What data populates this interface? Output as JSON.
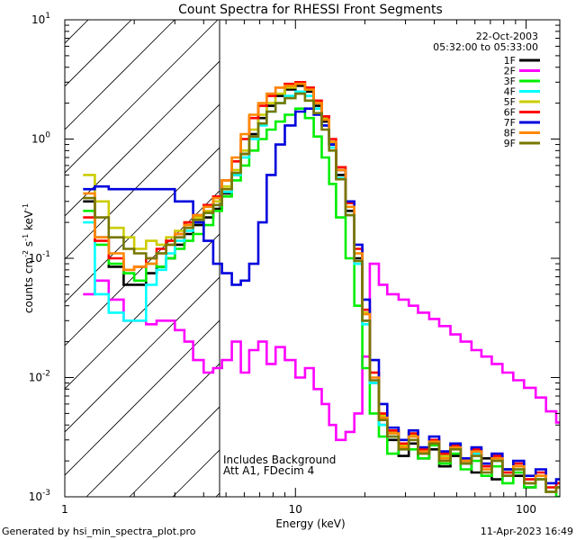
{
  "chart_data": {
    "type": "line",
    "title": "Count Spectra for RHESSI Front Segments",
    "xlabel": "Energy (keV)",
    "ylabel": "counts cm",
    "ylabel_sup1": "-2",
    "ylabel_mid": " s",
    "ylabel_sup2": "-1",
    "ylabel_end": " keV",
    "ylabel_sup3": "-1",
    "x_scale": "log",
    "y_scale": "log",
    "xlim": [
      1,
      140
    ],
    "ylim": [
      0.001,
      10
    ],
    "x_ticks": [
      {
        "value": 1,
        "label": "1"
      },
      {
        "value": 10,
        "label": "10"
      },
      {
        "value": 100,
        "label": "100"
      }
    ],
    "y_ticks": [
      {
        "value": 0.001,
        "base": "10",
        "exp": "-3"
      },
      {
        "value": 0.01,
        "base": "10",
        "exp": "-2"
      },
      {
        "value": 0.1,
        "base": "10",
        "exp": "-1"
      },
      {
        "value": 1,
        "base": "10",
        "exp": "0"
      },
      {
        "value": 10,
        "base": "10",
        "exp": "1"
      }
    ],
    "hatched_region_x": [
      1,
      6
    ],
    "legend": {
      "position": "top-right",
      "date": "22-Oct-2003",
      "time_range": "05:32:00 to 05:33:00"
    },
    "annotation_lines": [
      "Includes Background",
      "Att A1, FDecim  4"
    ],
    "footer_left": "Generated by hsi_min_spectra_plot.pro",
    "footer_right": "11-Apr-2023 16:49",
    "energy_bins": [
      1.2,
      1.35,
      1.55,
      1.8,
      2.0,
      2.25,
      2.5,
      2.75,
      3.0,
      3.3,
      3.6,
      4.0,
      4.4,
      4.8,
      5.3,
      5.8,
      6.3,
      6.9,
      7.5,
      8.2,
      9.0,
      10.0,
      11.0,
      12.0,
      13.0,
      14.0,
      15.0,
      16.5,
      18.0,
      19.5,
      21.0,
      23.0,
      25.0,
      28.0,
      31.0,
      34.0,
      38.0,
      42.0,
      47.0,
      52.0,
      58.0,
      64.0,
      71.0,
      79.0,
      88.0,
      98.0,
      110.0,
      122.0,
      135.0
    ],
    "series": [
      {
        "name": "1F",
        "color": "#000000",
        "values": [
          0.3,
          0.15,
          0.085,
          0.06,
          0.06,
          0.075,
          0.085,
          0.1,
          0.13,
          0.16,
          0.19,
          0.22,
          0.26,
          0.35,
          0.5,
          0.75,
          1.1,
          1.5,
          1.9,
          2.3,
          2.6,
          2.8,
          2.5,
          1.9,
          1.4,
          0.9,
          0.5,
          0.25,
          0.1,
          0.03,
          0.009,
          0.004,
          0.003,
          0.0022,
          0.0028,
          0.0021,
          0.0025,
          0.0018,
          0.0022,
          0.0019,
          0.0016,
          0.0021,
          0.0014,
          0.0017,
          0.0015,
          0.0012,
          0.0014,
          0.0011,
          0.0012
        ]
      },
      {
        "name": "2F",
        "color": "#ff00ff",
        "values": [
          0.05,
          0.065,
          0.045,
          0.03,
          0.03,
          0.028,
          0.03,
          0.03,
          0.025,
          0.02,
          0.014,
          0.011,
          0.012,
          0.014,
          0.02,
          0.011,
          0.017,
          0.02,
          0.013,
          0.018,
          0.014,
          0.01,
          0.012,
          0.008,
          0.006,
          0.004,
          0.003,
          0.0035,
          0.005,
          0.015,
          0.09,
          0.06,
          0.05,
          0.045,
          0.04,
          0.035,
          0.031,
          0.027,
          0.023,
          0.02,
          0.017,
          0.015,
          0.013,
          0.011,
          0.0095,
          0.0082,
          0.0068,
          0.0052,
          0.0042
        ]
      },
      {
        "name": "3F",
        "color": "#00ee00",
        "values": [
          0.25,
          0.13,
          0.09,
          0.075,
          0.065,
          0.09,
          0.085,
          0.1,
          0.12,
          0.14,
          0.16,
          0.19,
          0.25,
          0.33,
          0.45,
          0.6,
          0.8,
          1.0,
          1.2,
          1.4,
          1.6,
          1.8,
          1.5,
          1.05,
          0.7,
          0.42,
          0.22,
          0.1,
          0.04,
          0.012,
          0.005,
          0.0032,
          0.0023,
          0.0028,
          0.0025,
          0.0021,
          0.0027,
          0.0019,
          0.0023,
          0.0017,
          0.002,
          0.0015,
          0.0018,
          0.0013,
          0.0016,
          0.0012,
          0.0014,
          0.0011,
          0.001
        ]
      },
      {
        "name": "4F",
        "color": "#00ffff",
        "values": [
          0.2,
          0.05,
          0.035,
          0.03,
          0.03,
          0.06,
          0.08,
          0.11,
          0.14,
          0.17,
          0.2,
          0.24,
          0.28,
          0.36,
          0.5,
          0.7,
          1.0,
          1.3,
          1.7,
          2.0,
          2.3,
          2.5,
          2.3,
          1.8,
          1.3,
          0.85,
          0.47,
          0.23,
          0.09,
          0.028,
          0.009,
          0.004,
          0.0032,
          0.0026,
          0.0034,
          0.0024,
          0.003,
          0.0022,
          0.0027,
          0.0019,
          0.0023,
          0.0018,
          0.002,
          0.0015,
          0.0017,
          0.0013,
          0.0014,
          0.0011,
          0.0012
        ]
      },
      {
        "name": "5F",
        "color": "#cccc00",
        "values": [
          0.5,
          0.3,
          0.18,
          0.15,
          0.12,
          0.14,
          0.13,
          0.15,
          0.17,
          0.2,
          0.22,
          0.25,
          0.3,
          0.4,
          0.55,
          0.8,
          1.2,
          1.6,
          2.0,
          2.4,
          2.7,
          2.9,
          2.6,
          2.0,
          1.5,
          0.95,
          0.55,
          0.27,
          0.11,
          0.035,
          0.011,
          0.0048,
          0.0035,
          0.0027,
          0.0033,
          0.0024,
          0.003,
          0.0022,
          0.0026,
          0.002,
          0.0024,
          0.0018,
          0.0021,
          0.0016,
          0.0018,
          0.0014,
          0.0015,
          0.0012,
          0.0013
        ]
      },
      {
        "name": "6F",
        "color": "#ff0000",
        "values": [
          0.22,
          0.14,
          0.1,
          0.08,
          0.085,
          0.1,
          0.12,
          0.14,
          0.16,
          0.2,
          0.23,
          0.28,
          0.33,
          0.45,
          0.65,
          1.0,
          1.5,
          1.9,
          2.3,
          2.7,
          2.9,
          3.0,
          2.7,
          2.1,
          1.55,
          1.0,
          0.58,
          0.29,
          0.12,
          0.037,
          0.011,
          0.005,
          0.0036,
          0.0028,
          0.0034,
          0.0025,
          0.003,
          0.0023,
          0.0027,
          0.0021,
          0.0025,
          0.0018,
          0.0022,
          0.0016,
          0.0019,
          0.0014,
          0.0016,
          0.0012,
          0.0013
        ]
      },
      {
        "name": "7F",
        "color": "#0000dd",
        "values": [
          0.38,
          0.4,
          0.38,
          0.38,
          0.38,
          0.38,
          0.38,
          0.38,
          0.3,
          0.3,
          0.2,
          0.14,
          0.09,
          0.075,
          0.06,
          0.065,
          0.09,
          0.2,
          0.5,
          0.9,
          1.3,
          1.7,
          1.8,
          1.6,
          1.3,
          0.9,
          0.55,
          0.3,
          0.13,
          0.045,
          0.014,
          0.006,
          0.0038,
          0.003,
          0.0036,
          0.0026,
          0.0032,
          0.0024,
          0.0028,
          0.0021,
          0.0026,
          0.0019,
          0.0023,
          0.0017,
          0.002,
          0.0015,
          0.0017,
          0.0013,
          0.0014
        ]
      },
      {
        "name": "8F",
        "color": "#ff8800",
        "values": [
          0.35,
          0.15,
          0.11,
          0.08,
          0.085,
          0.09,
          0.11,
          0.13,
          0.16,
          0.19,
          0.23,
          0.27,
          0.32,
          0.45,
          0.7,
          1.1,
          1.6,
          2.0,
          2.4,
          2.7,
          2.8,
          2.9,
          2.6,
          2.0,
          1.45,
          0.95,
          0.55,
          0.27,
          0.11,
          0.034,
          0.01,
          0.0046,
          0.0034,
          0.0026,
          0.0032,
          0.0024,
          0.0029,
          0.0021,
          0.0026,
          0.002,
          0.0024,
          0.0017,
          0.0021,
          0.0015,
          0.0018,
          0.0013,
          0.0015,
          0.0011,
          0.0012
        ]
      },
      {
        "name": "9F",
        "color": "#777700",
        "values": [
          0.32,
          0.22,
          0.15,
          0.12,
          0.11,
          0.1,
          0.11,
          0.13,
          0.15,
          0.18,
          0.21,
          0.24,
          0.28,
          0.38,
          0.52,
          0.75,
          1.05,
          1.35,
          1.7,
          2.0,
          2.2,
          2.4,
          2.1,
          1.65,
          1.2,
          0.8,
          0.46,
          0.23,
          0.095,
          0.03,
          0.0095,
          0.0044,
          0.0032,
          0.0025,
          0.003,
          0.0023,
          0.0028,
          0.002,
          0.0025,
          0.0019,
          0.0022,
          0.0016,
          0.002,
          0.0015,
          0.0017,
          0.0013,
          0.0014,
          0.0011,
          0.0012
        ]
      }
    ]
  }
}
